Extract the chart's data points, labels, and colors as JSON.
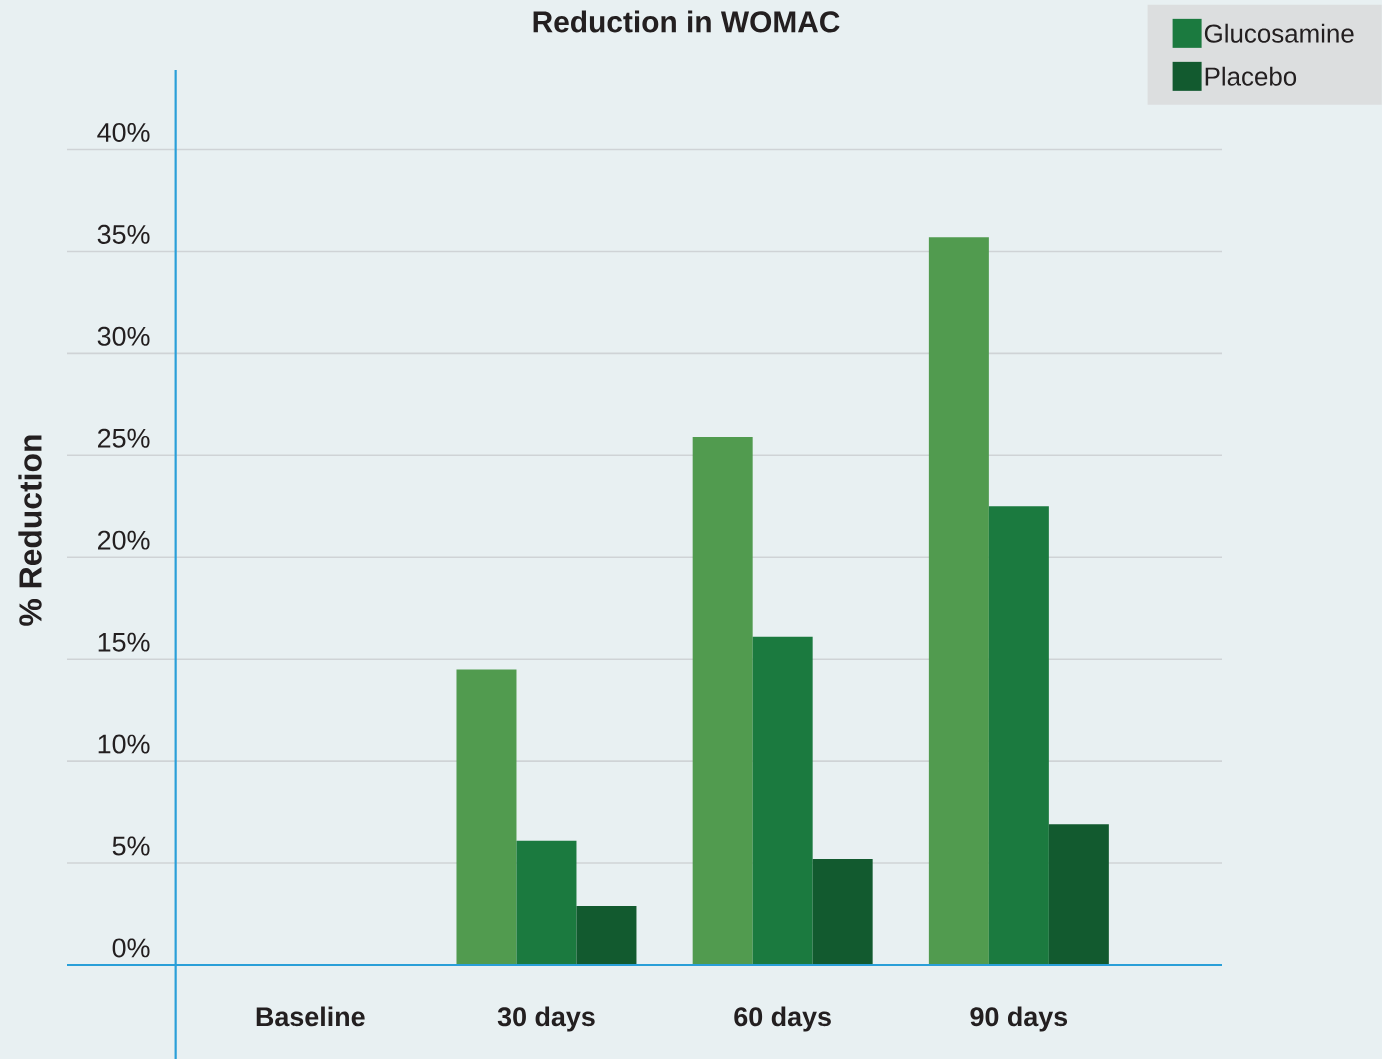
{
  "chart_data": {
    "type": "bar",
    "title": "Reduction in WOMAC",
    "ylabel": "% Reduction",
    "categories": [
      "Baseline",
      "30 days",
      "60 days",
      "90 days"
    ],
    "series": [
      {
        "color": "#519b4f",
        "values": [
          0,
          14.5,
          25.9,
          35.7
        ]
      },
      {
        "name": "Glucosamine",
        "color": "#1b7a3f",
        "values": [
          0,
          6.1,
          16.1,
          22.5
        ]
      },
      {
        "name": "Placebo",
        "color": "#125a2f",
        "values": [
          0,
          2.9,
          5.2,
          6.9
        ]
      }
    ],
    "ylim": [
      0,
      43.9
    ],
    "yticks": [
      {
        "value": 0,
        "label": "0%"
      },
      {
        "value": 5,
        "label": "5%"
      },
      {
        "value": 10,
        "label": "10%"
      },
      {
        "value": 15,
        "label": "15%"
      },
      {
        "value": 20,
        "label": "20%"
      },
      {
        "value": 25,
        "label": "25%"
      },
      {
        "value": 30,
        "label": "30%"
      },
      {
        "value": 35,
        "label": "35%"
      },
      {
        "value": 40,
        "label": "40%"
      }
    ],
    "grid": "y",
    "legend": "top right"
  }
}
